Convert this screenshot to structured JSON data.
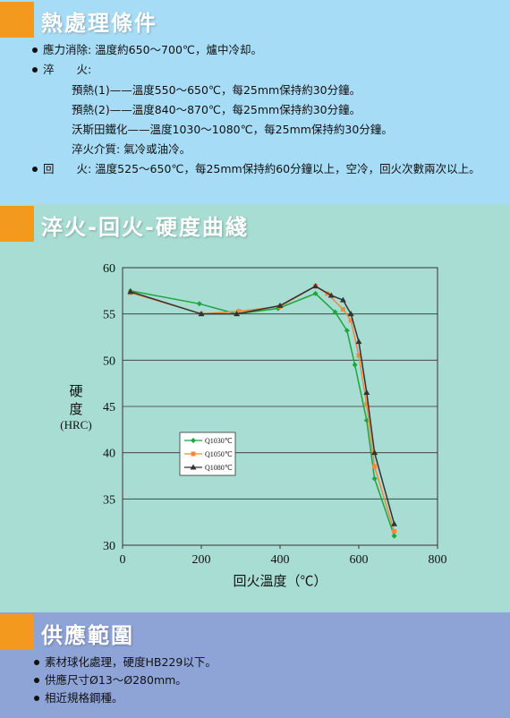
{
  "section1": {
    "title": "熱處理條件",
    "items": [
      "應力消除: 溫度約650～700℃，爐中冷却。",
      "淬　　火:",
      "預熱(1)——溫度550～650℃，每25mm保持約30分鐘。",
      "預熱(2)——溫度840～870℃，每25mm保持約30分鐘。",
      "沃斯田鐵化——溫度1030～1080℃，每25mm保持約30分鐘。",
      "淬火介質: 氣冷或油冷。",
      "回　　火: 溫度525～650℃，每25mm保持約60分鐘以上，空冷，回火次數兩次以上。"
    ]
  },
  "section2": {
    "title": "淬火-回火-硬度曲綫"
  },
  "section3": {
    "title": "供應範圍",
    "items": [
      "素材球化處理，硬度HB229以下。",
      "供應尺寸Ø13～Ø280mm。",
      "相近規格鋼種。"
    ]
  },
  "chart_data": {
    "type": "line",
    "xlabel": "回火溫度（℃）",
    "ylabel_lines": [
      "硬",
      "度",
      "(HRC)"
    ],
    "xlim": [
      0,
      800
    ],
    "ylim": [
      30,
      60
    ],
    "xticks": [
      "0",
      "200",
      "400",
      "600",
      "800"
    ],
    "yticks": [
      "30",
      "35",
      "40",
      "45",
      "50",
      "55",
      "60"
    ],
    "grid": true,
    "legend_position": "middle-left",
    "series": [
      {
        "name": "Q1030℃",
        "color": "#1fa53c",
        "marker": "diamond",
        "x": [
          20,
          195,
          290,
          395,
          490,
          540,
          570,
          590,
          620,
          640,
          690
        ],
        "y": [
          57.5,
          56.1,
          55.0,
          55.6,
          57.2,
          55.2,
          53.2,
          49.5,
          43.5,
          37.2,
          31.0
        ]
      },
      {
        "name": "Q1050℃",
        "color": "#f08a3c",
        "marker": "square",
        "x": [
          20,
          200,
          295,
          400,
          490,
          520,
          560,
          580,
          600,
          620,
          640,
          690
        ],
        "y": [
          57.3,
          55.0,
          55.3,
          55.8,
          58.0,
          57.2,
          55.5,
          54.3,
          50.5,
          45.2,
          38.5,
          31.5
        ]
      },
      {
        "name": "Q1080℃",
        "color": "#333333",
        "marker": "triangle",
        "x": [
          20,
          200,
          290,
          400,
          490,
          530,
          560,
          580,
          600,
          620,
          640,
          690
        ],
        "y": [
          57.4,
          55.0,
          55.0,
          55.9,
          58.0,
          57.0,
          56.5,
          55.0,
          52.0,
          46.5,
          40.0,
          32.3
        ]
      }
    ]
  }
}
